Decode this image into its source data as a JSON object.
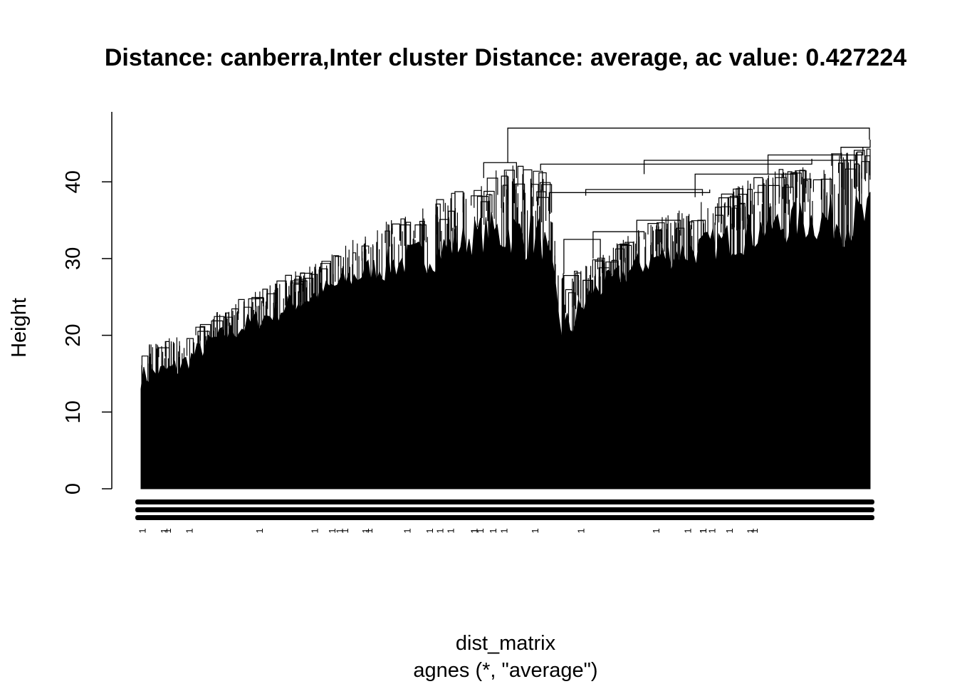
{
  "chart_data": {
    "type": "dendrogram",
    "title": "Distance: canberra,Inter cluster Distance: average, ac value: 0.427224",
    "ylabel": "Height",
    "xlabel": "dist_matrix",
    "sublabel": "agnes (*, \"average\")",
    "ylim": [
      0,
      50
    ],
    "yticks": [
      0,
      10,
      20,
      30,
      40
    ],
    "grid": false,
    "legend": "none",
    "root_height": 47,
    "top_splits": [
      {
        "name": "left-group",
        "height": 42.5,
        "leaf_span": [
          0.0,
          0.505
        ]
      },
      {
        "name": "right-group",
        "height": 47,
        "leaf_span": [
          0.505,
          1.0
        ]
      }
    ],
    "height_profile": [
      {
        "leaf_pos": 0.0,
        "merge_height": 18.5,
        "min_leaf_height": 13
      },
      {
        "leaf_pos": 0.05,
        "merge_height": 20.0,
        "min_leaf_height": 14
      },
      {
        "leaf_pos": 0.1,
        "merge_height": 23.0,
        "min_leaf_height": 18
      },
      {
        "leaf_pos": 0.15,
        "merge_height": 25.5,
        "min_leaf_height": 20
      },
      {
        "leaf_pos": 0.2,
        "merge_height": 28.0,
        "min_leaf_height": 22
      },
      {
        "leaf_pos": 0.25,
        "merge_height": 30.0,
        "min_leaf_height": 24
      },
      {
        "leaf_pos": 0.3,
        "merge_height": 33.0,
        "min_leaf_height": 26
      },
      {
        "leaf_pos": 0.35,
        "merge_height": 35.5,
        "min_leaf_height": 27
      },
      {
        "leaf_pos": 0.4,
        "merge_height": 37.5,
        "min_leaf_height": 28
      },
      {
        "leaf_pos": 0.45,
        "merge_height": 39.5,
        "min_leaf_height": 30
      },
      {
        "leaf_pos": 0.5,
        "merge_height": 42.5,
        "min_leaf_height": 30
      },
      {
        "leaf_pos": 0.55,
        "merge_height": 41.5,
        "min_leaf_height": 29
      },
      {
        "leaf_pos": 0.58,
        "merge_height": 28.0,
        "min_leaf_height": 17
      },
      {
        "leaf_pos": 0.62,
        "merge_height": 30.0,
        "min_leaf_height": 24
      },
      {
        "leaf_pos": 0.7,
        "merge_height": 35.0,
        "min_leaf_height": 28
      },
      {
        "leaf_pos": 0.78,
        "merge_height": 38.0,
        "min_leaf_height": 29
      },
      {
        "leaf_pos": 0.85,
        "merge_height": 41.0,
        "min_leaf_height": 31
      },
      {
        "leaf_pos": 0.92,
        "merge_height": 43.0,
        "min_leaf_height": 32
      },
      {
        "leaf_pos": 1.0,
        "merge_height": 45.5,
        "min_leaf_height": 31
      }
    ],
    "leaf_label_glyph": "1",
    "colors": {
      "line": "#000000",
      "background": "#ffffff"
    }
  }
}
